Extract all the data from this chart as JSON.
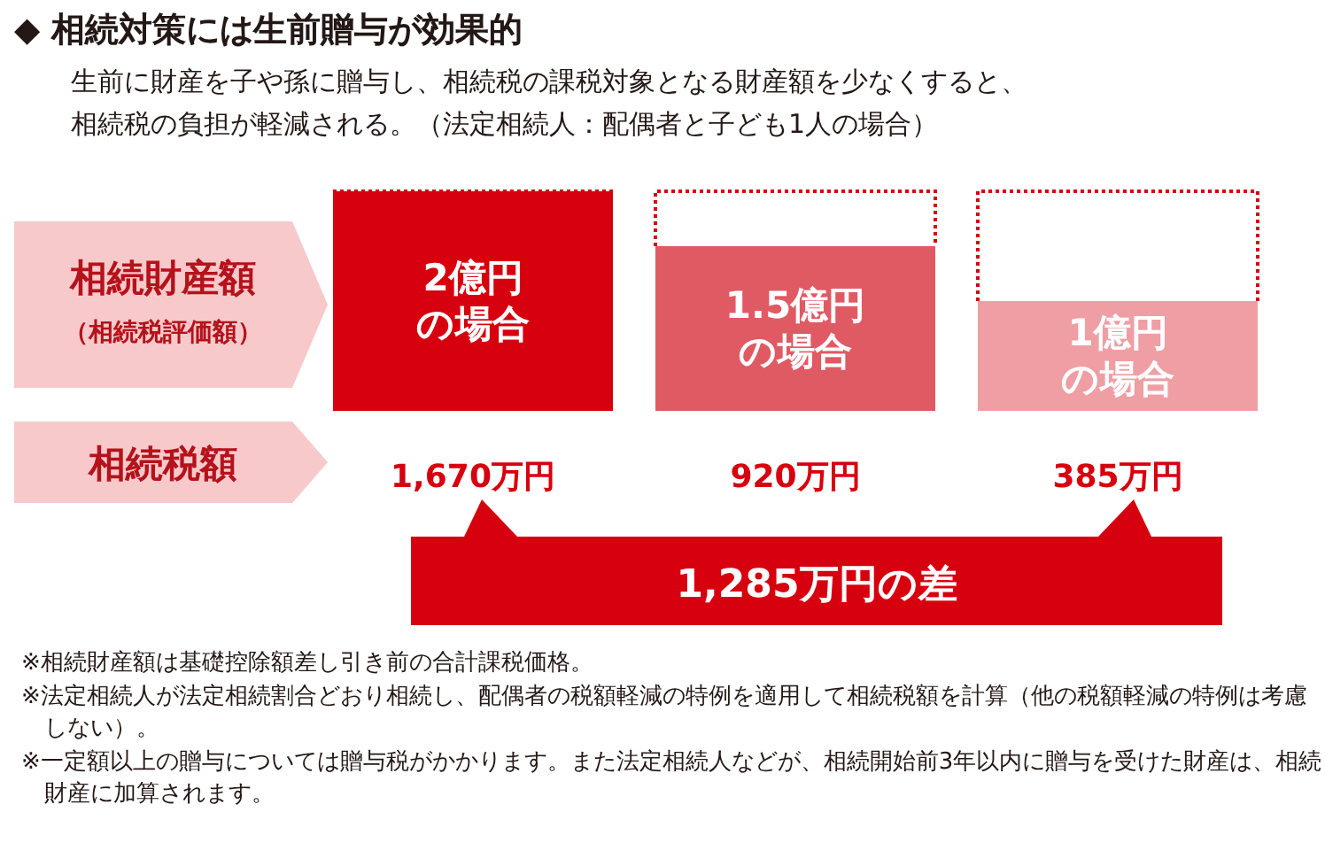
{
  "chart_data": {
    "type": "bar",
    "title": "◆ 相続対策には生前贈与が効果的",
    "subtitle": "生前に財産を子や孫に贈与し、相続税の課税対象となる財産額を少なくすると、相続税の負担が軽減される。（法定相続人：配偶者と子ども1人の場合）",
    "categories": [
      null,
      null,
      null
    ],
    "values": [
      2,
      1.5,
      1
    ],
    "value_labels": [
      "2億円の場合",
      "1.5億円の場合",
      "1億円の場合"
    ],
    "colors": [
      "#d7000f",
      "#e05a64",
      "#ef9ea4"
    ],
    "ref_lines": [
      {
        "axis": "y",
        "value": 2,
        "line_style": "dotted",
        "color": "#d7000f"
      }
    ],
    "annotations": [
      "相続財産額",
      "（相続税評価額）",
      "相続税額",
      "1,670万円",
      "920万円",
      "385万円",
      "1,285万円の差",
      "※相続財産額は基礎控除額差し引き前の合計課税価格。",
      "※法定相続人が法定相続割合どおり相続し、配偶者の税額軽減の特例を適用して相続税額を計算（他の税額軽減の特例は考慮しない）。",
      "※一定額以上の贈与については贈与税がかかります。また法定相続人などが、相続開始前3年以内に贈与を受けた財産は、相続財産に加算されます。"
    ]
  }
}
